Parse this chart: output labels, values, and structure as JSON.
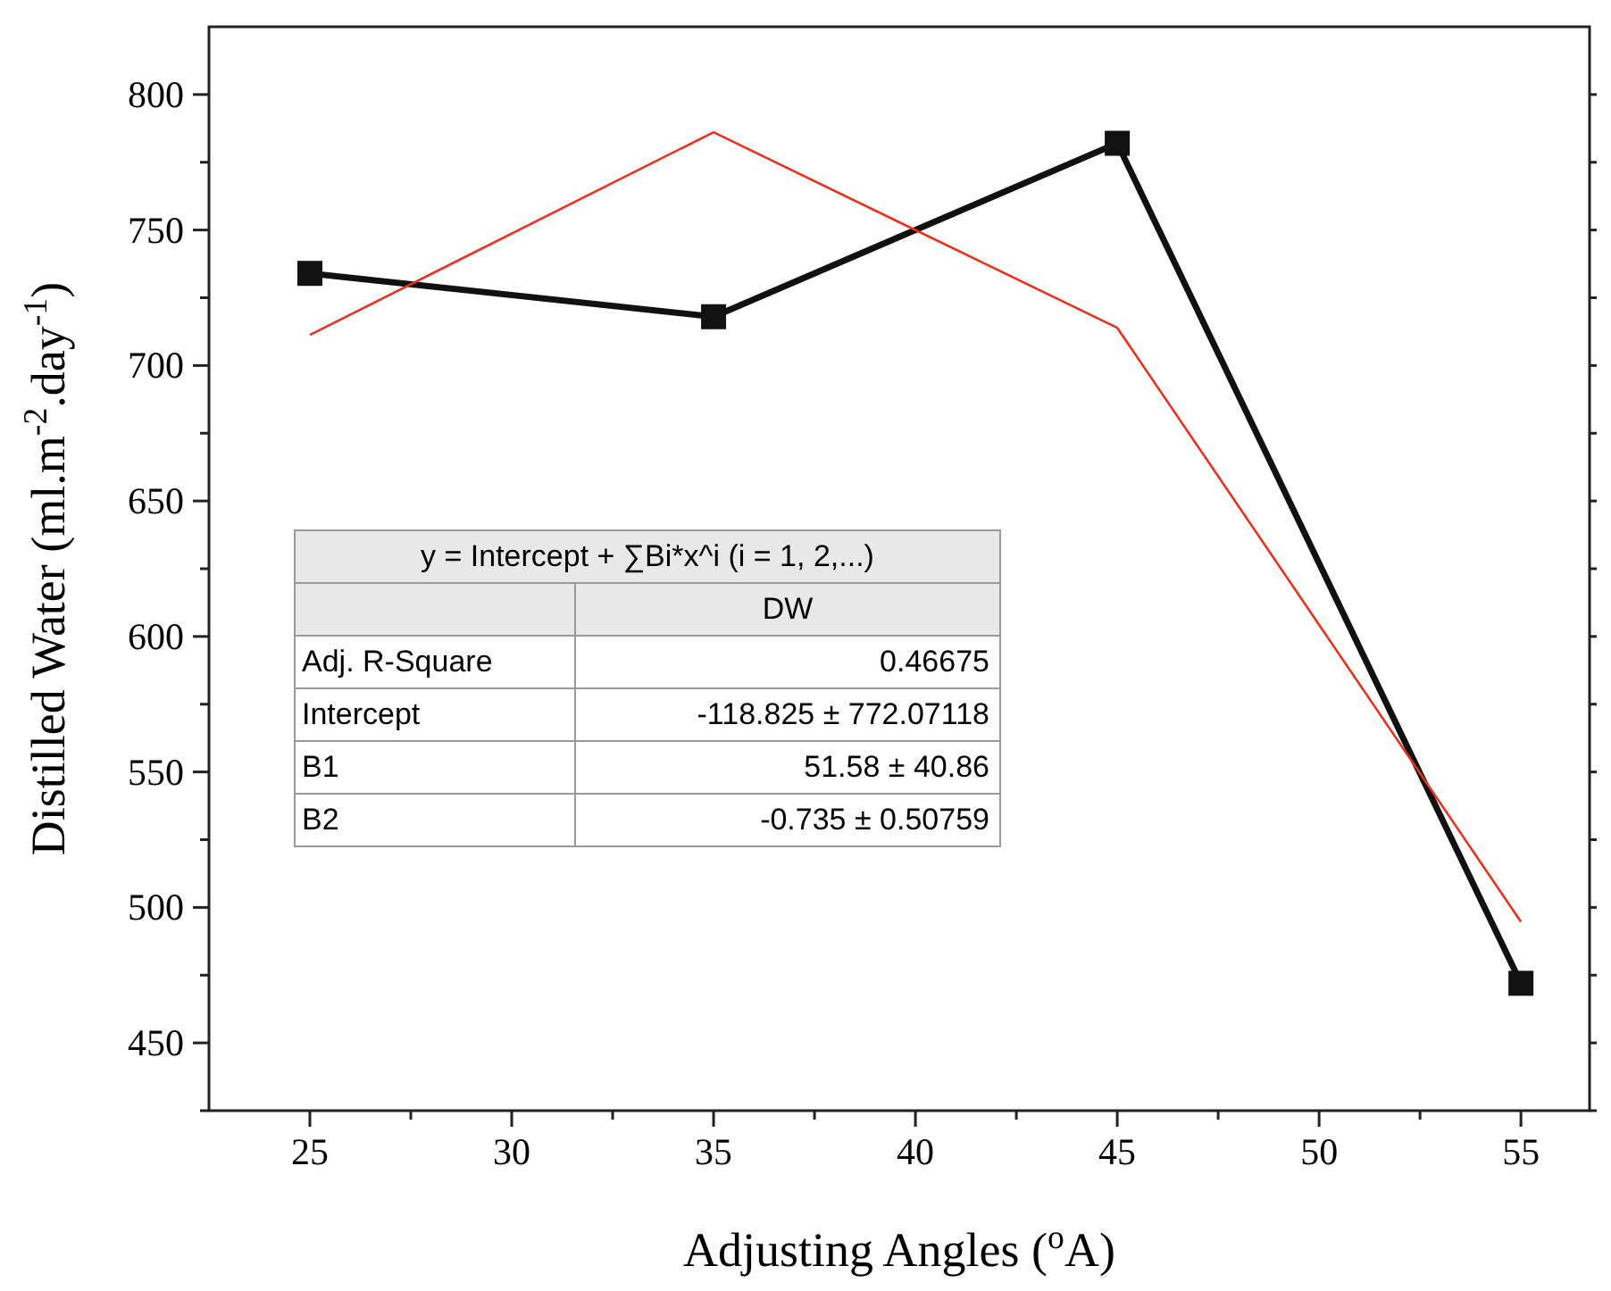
{
  "chart_data": {
    "type": "line",
    "xlabel": "Adjusting Angles ($^{o}$A)",
    "ylabel": "Distilled Water (ml.m$^{-2}$.day$^{-1}$)",
    "x": [
      25,
      35,
      45,
      55
    ],
    "series": [
      {
        "color": "#111111",
        "values": [
          734,
          718,
          782,
          472
        ],
        "marker": "square"
      },
      {
        "color": "#e8321e",
        "values": [
          711.3,
          786.1,
          713.9,
          494.7
        ],
        "marker": "none"
      }
    ],
    "xlim": [
      22.5,
      56.7
    ],
    "xticks": [
      25,
      {
        "value": 27.5,
        "label": null
      },
      30,
      {
        "value": 32.5,
        "label": null
      },
      35,
      {
        "value": 37.5,
        "label": null
      },
      40,
      {
        "value": 42.5,
        "label": null
      },
      45,
      {
        "value": 47.5,
        "label": null
      },
      50,
      {
        "value": 52.5,
        "label": null
      },
      55
    ],
    "ylim": [
      425,
      825
    ],
    "yticks": [
      {
        "value": 425,
        "label": null
      },
      450,
      {
        "value": 475,
        "label": null
      },
      500,
      {
        "value": 525,
        "label": null
      },
      550,
      {
        "value": 575,
        "label": null
      },
      600,
      {
        "value": 625,
        "label": null
      },
      650,
      {
        "value": 675,
        "label": null
      },
      700,
      {
        "value": 725,
        "label": null
      },
      750,
      {
        "value": 775,
        "label": null
      },
      800
    ],
    "grid": false,
    "annotations": [
      "y = Intercept + ∑Bi*x^i (i = 1, 2,...)",
      "DW",
      "Adj. R-Square",
      "0.46675",
      "Intercept",
      "-118.825 ± 772.07118",
      "B1",
      "51.58 ± 40.86",
      "B2",
      "-0.735 ± 0.50759"
    ]
  }
}
